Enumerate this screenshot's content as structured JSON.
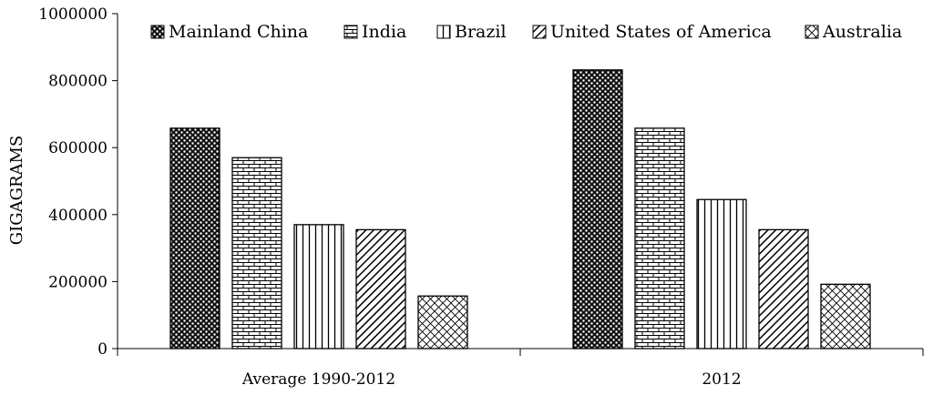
{
  "chart_data": {
    "type": "bar",
    "categories": [
      "Average 1990-2012",
      "2012"
    ],
    "series": [
      {
        "name": "Mainland China",
        "values": [
          658000,
          832000
        ]
      },
      {
        "name": "India",
        "values": [
          570000,
          658000
        ]
      },
      {
        "name": "Brazil",
        "values": [
          370000,
          445000
        ]
      },
      {
        "name": "United States of America",
        "values": [
          355000,
          355000
        ]
      },
      {
        "name": "Australia",
        "values": [
          157000,
          192000
        ]
      }
    ],
    "ylabel": "GIGAGRAMS",
    "xlabel": "",
    "ylim": [
      0,
      1000000
    ],
    "yticks": [
      "0",
      "200000",
      "400000",
      "600000",
      "800000",
      "1000000"
    ],
    "yticks_values": [
      0,
      200000,
      400000,
      600000,
      800000,
      1000000
    ],
    "grid": false,
    "legend_position": "top"
  }
}
